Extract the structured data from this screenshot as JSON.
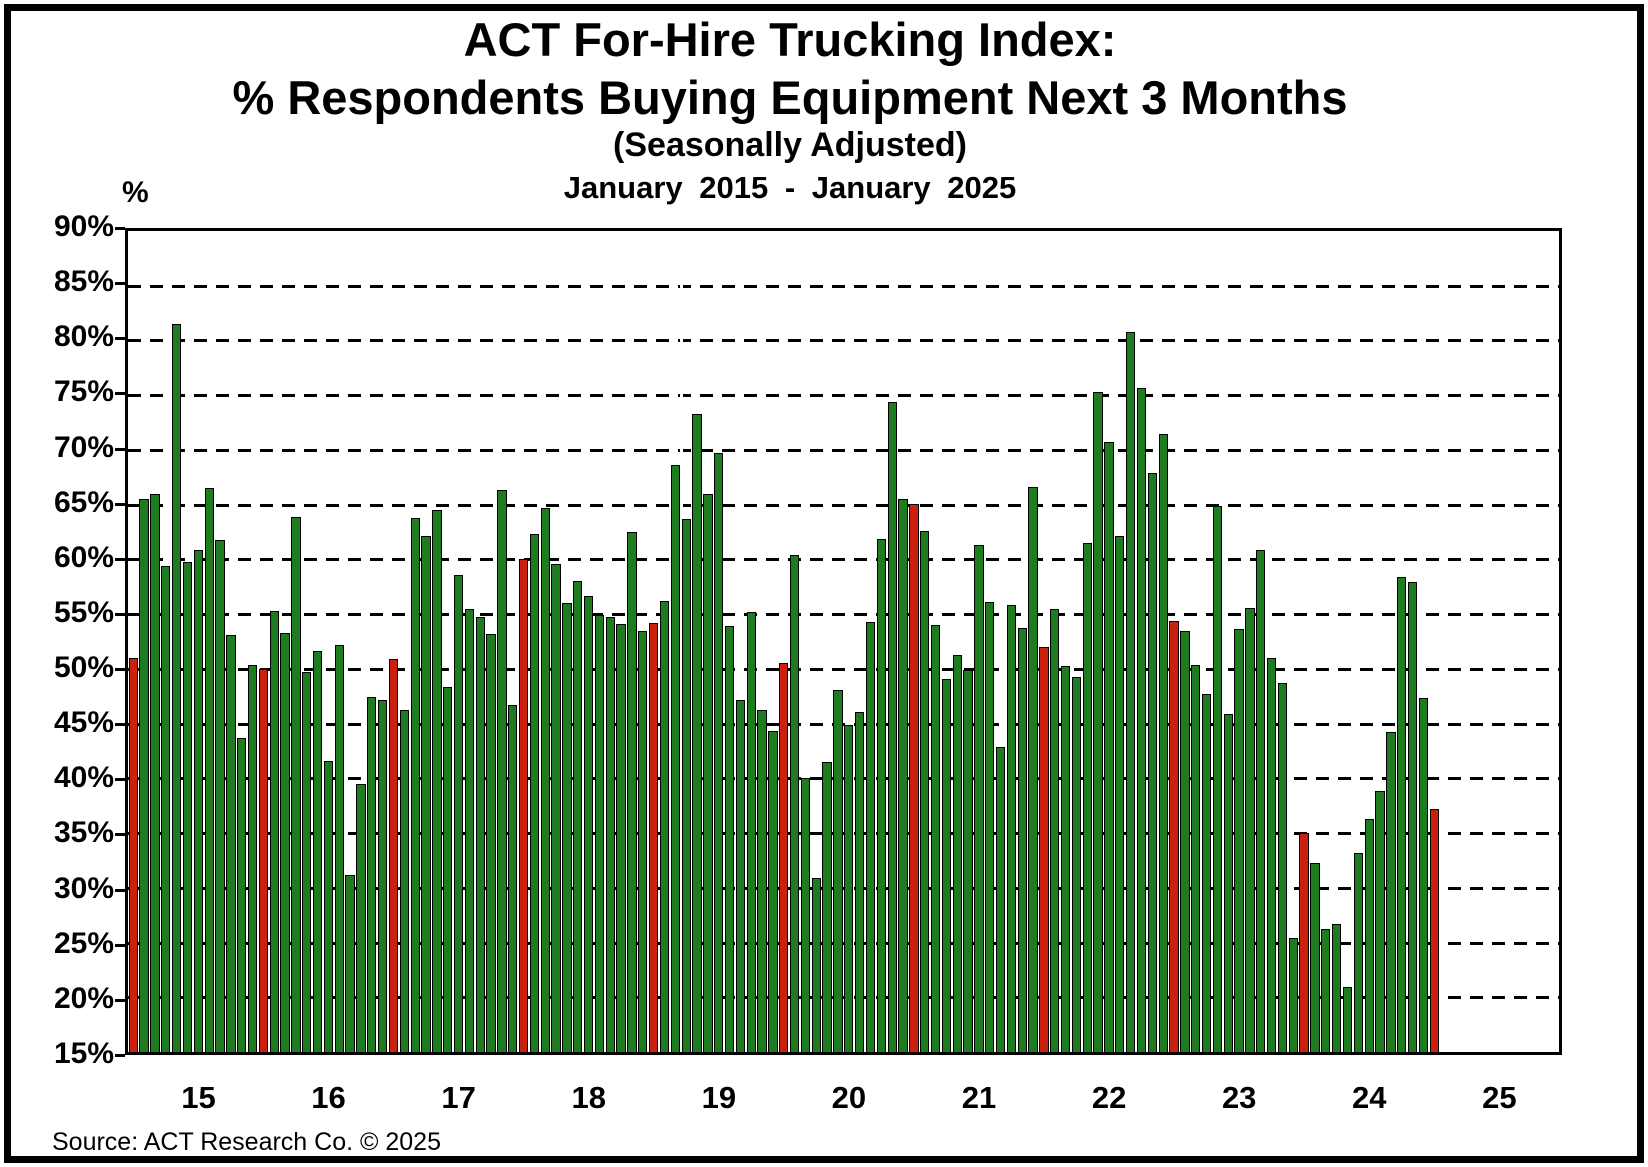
{
  "title": {
    "line1": "ACT For-Hire Trucking Index:",
    "line2": "% Respondents Buying Equipment Next 3 Months",
    "line3": "(Seasonally Adjusted)",
    "line4": "January  2015 - January  2025"
  },
  "y_axis": {
    "title": "%",
    "tick_labels": [
      "90%",
      "85%",
      "80%",
      "75%",
      "70%",
      "65%",
      "60%",
      "55%",
      "50%",
      "45%",
      "40%",
      "35%",
      "30%",
      "25%",
      "20%",
      "15%"
    ]
  },
  "x_axis": {
    "tick_labels": [
      "15",
      "16",
      "17",
      "18",
      "19",
      "20",
      "21",
      "22",
      "23",
      "24",
      "25"
    ]
  },
  "source": "Source: ACT Research Co. © 2025",
  "chart_data": {
    "type": "bar",
    "title": "ACT For-Hire Trucking Index: % Respondents Buying Equipment Next 3 Months (Seasonally Adjusted), January 2015 - January 2025",
    "xlabel": "",
    "ylabel": "%",
    "ylim": [
      15,
      90
    ],
    "ytick_step": 5,
    "grid": "horizontal-dashed",
    "legend": "none",
    "frequency": "monthly",
    "x_start": "2015-01",
    "x_end": "2025-01",
    "x_axis_extends_to": "2025-12",
    "note": "121 monthly bars; January bars are red, all other months green; bars rise from the 15% baseline",
    "colors": {
      "bar_green": "#1e7b1f",
      "bar_red": "#cc200e",
      "bar_outline": "#000000",
      "background": "#ffffff",
      "gridline": "#000000"
    },
    "series": [
      {
        "name": "% respondents buying equipment next 3 months",
        "values": [
          51.0,
          65.5,
          66.0,
          59.4,
          81.5,
          59.8,
          60.9,
          66.5,
          61.8,
          53.1,
          43.7,
          50.4,
          50.0,
          55.3,
          53.3,
          63.9,
          49.7,
          51.6,
          41.6,
          52.2,
          31.2,
          39.5,
          47.4,
          47.2,
          50.9,
          46.2,
          63.8,
          62.1,
          64.5,
          48.3,
          58.6,
          55.5,
          54.7,
          53.2,
          66.3,
          46.7,
          60.0,
          62.3,
          64.7,
          59.6,
          56.0,
          58.0,
          56.7,
          54.9,
          54.7,
          54.1,
          62.5,
          53.5,
          54.2,
          56.2,
          68.6,
          63.7,
          73.3,
          66.0,
          69.7,
          53.9,
          47.2,
          55.2,
          46.2,
          44.3,
          50.5,
          60.4,
          40.0,
          30.9,
          41.5,
          48.1,
          44.9,
          46.1,
          54.3,
          61.9,
          74.4,
          65.5,
          65.1,
          62.6,
          54.0,
          49.1,
          51.3,
          49.9,
          61.3,
          56.1,
          42.9,
          55.8,
          53.7,
          66.6,
          52.0,
          55.5,
          50.3,
          49.3,
          61.5,
          75.3,
          70.7,
          62.1,
          80.8,
          75.7,
          67.9,
          71.5,
          54.4,
          53.5,
          50.4,
          47.7,
          64.9,
          45.9,
          53.6,
          55.6,
          60.9,
          51.0,
          48.7,
          25.4,
          35.0,
          32.3,
          26.2,
          26.7,
          20.9,
          33.2,
          36.3,
          38.8,
          44.2,
          58.4,
          57.9,
          47.3,
          37.2
        ]
      }
    ]
  }
}
